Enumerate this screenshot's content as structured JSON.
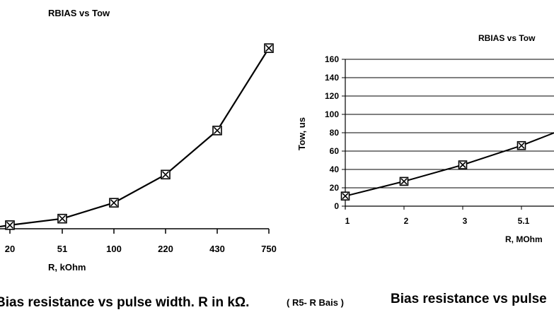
{
  "chart_data": [
    {
      "type": "line",
      "title": "RBIAS vs Tow",
      "xlabel": "R, kOhm",
      "ylabel": "",
      "categories": [
        "20",
        "51",
        "100",
        "220",
        "430",
        "750"
      ],
      "series": [
        {
          "values": [
            5,
            14,
            36,
            75,
            136,
            250
          ]
        }
      ],
      "ylim": [
        0,
        260
      ],
      "marker": "boxed-x",
      "grid": false,
      "line_color": "#000000"
    },
    {
      "type": "line",
      "title": "RBIAS vs Tow",
      "xlabel": "R, MOhm",
      "ylabel": "Tow,  us",
      "categories": [
        "1",
        "2",
        "3",
        "5.1"
      ],
      "series": [
        {
          "values": [
            11,
            27,
            45,
            66
          ]
        }
      ],
      "yticks": [
        "0",
        "20",
        "40",
        "60",
        "80",
        "100",
        "120",
        "140",
        "160"
      ],
      "ylim": [
        0,
        160
      ],
      "marker": "boxed-x",
      "grid": true,
      "line_color": "#000000"
    }
  ],
  "captions": {
    "left": "Bias resistance vs pulse width. R in kΩ.",
    "left_note": "( R5- R Bais )",
    "right": "Bias resistance vs pulse"
  }
}
